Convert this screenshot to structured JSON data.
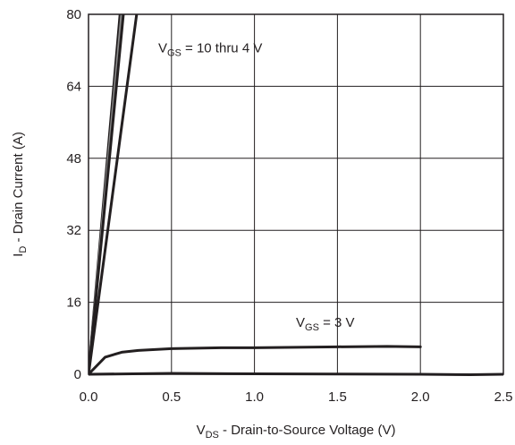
{
  "chart_data": {
    "type": "line",
    "title": "",
    "xlabel": {
      "main": "V",
      "sub": "DS",
      "rest": " - Drain-to-Source Voltage (V)"
    },
    "ylabel": {
      "main": "I",
      "sub": "D",
      "rest": " - Drain Current (A)"
    },
    "xlim": [
      0,
      2.5
    ],
    "ylim": [
      0,
      80
    ],
    "x_ticks": [
      0,
      0.5,
      1,
      1.5,
      2,
      2.5
    ],
    "x_tick_labels": [
      "0.0",
      "0.5",
      "1.0",
      "1.5",
      "2.0",
      "2.5"
    ],
    "y_ticks": [
      0,
      16,
      32,
      48,
      64,
      80
    ],
    "y_tick_labels": [
      "0",
      "16",
      "32",
      "48",
      "64",
      "80"
    ],
    "grid": true,
    "annotations": [
      {
        "main": "V",
        "sub": "GS",
        "rest": " = 10 thru 4 V",
        "x": 0.42,
        "y": 71.5
      },
      {
        "main": "V",
        "sub": "GS",
        "rest": " = 3 V",
        "x": 1.25,
        "y": 10.5
      }
    ],
    "series": [
      {
        "color": "#231f20",
        "width": 3,
        "points": [
          [
            0,
            0
          ],
          [
            0.19,
            80
          ]
        ]
      },
      {
        "color": "#8a8a8a",
        "width": 3,
        "points": [
          [
            0,
            0
          ],
          [
            0.2,
            80
          ]
        ]
      },
      {
        "color": "#231f20",
        "width": 3,
        "points": [
          [
            0,
            0
          ],
          [
            0.21,
            80
          ]
        ]
      },
      {
        "color": "#231f20",
        "width": 3,
        "points": [
          [
            0,
            0
          ],
          [
            0.29,
            80
          ]
        ]
      },
      {
        "color": "#231f20",
        "width": 3,
        "points": [
          [
            0,
            0
          ],
          [
            0.1,
            3.8
          ],
          [
            0.2,
            4.9
          ],
          [
            0.3,
            5.3
          ],
          [
            0.5,
            5.7
          ],
          [
            0.8,
            5.9
          ],
          [
            1.0,
            5.9
          ],
          [
            1.5,
            6.1
          ],
          [
            1.8,
            6.2
          ],
          [
            2.0,
            6.1
          ]
        ]
      },
      {
        "color": "#231f20",
        "width": 3,
        "points": [
          [
            0,
            0
          ],
          [
            0.5,
            0.2
          ],
          [
            1.0,
            0.1
          ],
          [
            1.5,
            0.05
          ],
          [
            2.0,
            0.0
          ],
          [
            2.3,
            -0.1
          ],
          [
            2.5,
            0.0
          ]
        ]
      }
    ]
  }
}
